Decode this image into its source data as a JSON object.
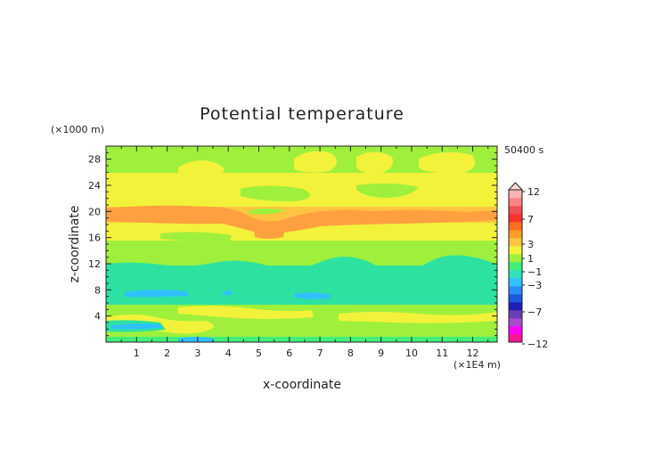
{
  "chart_data": {
    "type": "heatmap",
    "title": "Potential temperature",
    "xlabel": "x-coordinate",
    "ylabel": "z-coordinate",
    "x_unit": "(×1E4 m)",
    "y_unit": "(×1000 m)",
    "time_label": "50400 s",
    "xlim": [
      0,
      12.8
    ],
    "ylim": [
      0,
      30
    ],
    "x_ticks": [
      "1",
      "2",
      "3",
      "4",
      "5",
      "6",
      "7",
      "8",
      "9",
      "10",
      "11",
      "12"
    ],
    "y_ticks": [
      "4",
      "8",
      "12",
      "16",
      "20",
      "24",
      "28"
    ],
    "colorbar": {
      "labels": [
        "12",
        "7",
        "3",
        "1",
        "-1",
        "-3",
        "-7",
        "-12"
      ],
      "colors": [
        "#ff1493",
        "#ff00ff",
        "#a64dcc",
        "#6a3db3",
        "#1f1fb8",
        "#1a5adf",
        "#2b8cff",
        "#30c0ff",
        "#2de2c0",
        "#40ee7a",
        "#9ef03c",
        "#f2f23a",
        "#ffc440",
        "#ff9a22",
        "#ff6e1e",
        "#ff3030",
        "#f05050",
        "#ff8080",
        "#ffb0b0"
      ]
    },
    "bands": [
      {
        "z_range": [
          0,
          1.2
        ],
        "level": "-1 to -3"
      },
      {
        "z_range": [
          1.2,
          6
        ],
        "level": "-1 to 1"
      },
      {
        "z_range": [
          6,
          12
        ],
        "level": "-1 to -3"
      },
      {
        "z_range": [
          12,
          16
        ],
        "level": "-1 to 1"
      },
      {
        "z_range": [
          16,
          18.5
        ],
        "level": "1 to 3"
      },
      {
        "z_range": [
          18.5,
          21
        ],
        "level": "3 to 5"
      },
      {
        "z_range": [
          21,
          26
        ],
        "level": "1 to 3"
      },
      {
        "z_range": [
          26,
          30
        ],
        "level": "-1 to 1"
      }
    ]
  }
}
